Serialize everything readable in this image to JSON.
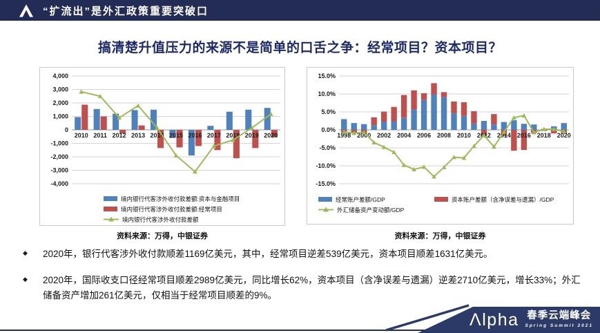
{
  "header": {
    "title": "“扩流出”是外汇政策重要突破口"
  },
  "main_title": "搞清楚升值压力的来源不是简单的口舌之争：经常项目？资本项目？",
  "colors": {
    "navy": "#232c55",
    "title_navy": "#1d2a69",
    "bar_blue": "#4f81bd",
    "bar_red": "#c0504d",
    "line_green": "#9bbb59",
    "footer_navy": "#2c3a68"
  },
  "chart_data": [
    {
      "type": "bar",
      "bar_mode": "grouped",
      "title": "",
      "xlabel": "",
      "ylabel": "",
      "grid": true,
      "legend_position": "bottom",
      "categories": [
        "2010",
        "2011",
        "2012",
        "2013",
        "2014",
        "2015",
        "2016",
        "2017",
        "2018",
        "2019",
        "2020"
      ],
      "series": [
        {
          "name": "境内银行代客涉外收付款差额:资本与金融项目",
          "color_key": "bar_blue",
          "values": [
            950,
            1550,
            1200,
            1470,
            1500,
            -600,
            -1900,
            300,
            1350,
            1500,
            1631
          ]
        },
        {
          "name": "境内银行代客涉外收付款差额:经常项目",
          "color_key": "bar_red",
          "values": [
            1870,
            1000,
            -280,
            330,
            -1350,
            -1300,
            -1200,
            -1500,
            -2100,
            -1350,
            -539
          ]
        }
      ],
      "line": {
        "name": "境内银行代客涉外收付款差额",
        "color_key": "line_green",
        "values": [
          2830,
          2500,
          900,
          1800,
          150,
          -1900,
          -3100,
          -1200,
          -750,
          150,
          1169
        ]
      },
      "ylim": [
        -4000,
        4000
      ],
      "ystep": 1000,
      "tick_format": "thousands",
      "xticks_every": 1
    },
    {
      "type": "bar",
      "bar_mode": "stacked",
      "title": "",
      "xlabel": "",
      "ylabel": "",
      "grid": true,
      "legend_position": "bottom",
      "categories": [
        "1998",
        "1999",
        "2000",
        "2001",
        "2002",
        "2003",
        "2004",
        "2005",
        "2006",
        "2007",
        "2008",
        "2009",
        "2010",
        "2011",
        "2012",
        "2013",
        "2014",
        "2015",
        "2016",
        "2017",
        "2018",
        "2019",
        "2020"
      ],
      "series": [
        {
          "name": "经常账户差额/GDP",
          "color_key": "bar_blue",
          "values": [
            3.0,
            1.9,
            1.6,
            1.3,
            2.3,
            2.4,
            3.4,
            5.7,
            8.3,
            9.9,
            9.1,
            4.7,
            3.9,
            1.8,
            2.5,
            1.5,
            2.2,
            2.7,
            1.7,
            1.5,
            0.3,
            1.0,
            1.9
          ]
        },
        {
          "name": "资本账户差额（含净误差与遗漏）/GDP",
          "color_key": "bar_red",
          "values": [
            -0.8,
            -0.9,
            -1.0,
            2.2,
            2.8,
            4.0,
            6.3,
            5.3,
            1.9,
            3.1,
            1.4,
            3.2,
            3.8,
            3.4,
            -1.7,
            2.9,
            -1.7,
            -5.8,
            -5.6,
            -0.9,
            -0.3,
            -1.0,
            -1.0
          ]
        }
      ],
      "line": {
        "name": "外汇储备资产变动额/GDP",
        "color_key": "line_green",
        "values": [
          -0.5,
          -0.9,
          -0.7,
          -3.5,
          -4.8,
          -6.2,
          -9.8,
          -11.0,
          -10.3,
          -13.0,
          -10.4,
          -7.6,
          -7.8,
          -4.5,
          -1.5,
          -4.7,
          -0.6,
          3.4,
          4.0,
          -0.7,
          0.2,
          0.2,
          -0.4
        ]
      },
      "ylim": [
        -15,
        15
      ],
      "ystep": 5,
      "tick_format": "percent1",
      "xticks_every": 2
    }
  ],
  "sources": {
    "left": "资料来源：万得，中银证券",
    "right": "资料来源：万得，中银证券"
  },
  "bullets": [
    "2020年，银行代客涉外收付款顺差1169亿美元，其中，经常项目逆差539亿美元，资本项目顺差1631亿美元。",
    "2020年，国际收支口径经常项目顺差2989亿美元，同比增长62%，资本项目（含净误差与遗漏）逆差2710亿美元，增长33%；外汇储备资产增加261亿美元，仅相当于经常项目顺差的9%。"
  ],
  "bullet_marker": "◆",
  "footer": {
    "brand_glyph": "Λ",
    "brand_rest": "lpha",
    "event": "春季云端峰会",
    "subtitle": "Spring Summit 2021"
  }
}
